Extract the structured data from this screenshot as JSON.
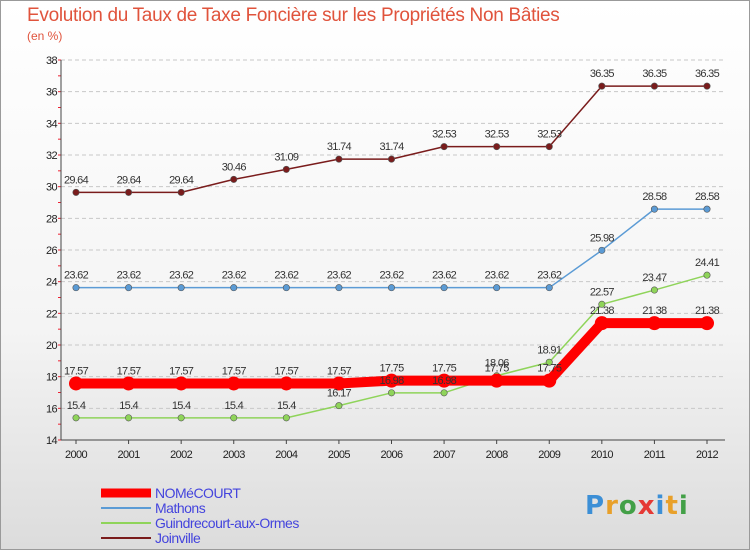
{
  "header": {
    "title": "Evolution du Taux de Taxe Foncière sur les Propriétés Non Bâties",
    "unit": "(en %)"
  },
  "logo": {
    "text": "Proxiti",
    "colors": [
      "#3c8fd6",
      "#e8a02a",
      "#43a047",
      "#e53935",
      "#3c8fd6",
      "#e8a02a",
      "#43a047"
    ]
  },
  "chart_data": {
    "type": "line",
    "title": "Evolution du Taux de Taxe Foncière sur les Propriétés Non Bâties",
    "ylabel": "(en %)",
    "xlabel": "",
    "ylim": [
      14,
      38
    ],
    "yticks": [
      14,
      16,
      18,
      20,
      22,
      24,
      26,
      28,
      30,
      32,
      34,
      36,
      38
    ],
    "grid": "horizontal-dashed",
    "legend": "bottom",
    "x": [
      "2000",
      "2001",
      "2002",
      "2003",
      "2004",
      "2005",
      "2006",
      "2007",
      "2008",
      "2009",
      "2010",
      "2011",
      "2012"
    ],
    "series": [
      {
        "name": "Joinville",
        "color": "#7a1c1c",
        "values": [
          29.64,
          29.64,
          29.64,
          30.46,
          31.09,
          31.74,
          31.74,
          32.53,
          32.53,
          32.53,
          36.35,
          36.35,
          36.35
        ],
        "labels": [
          "29.64",
          "29.64",
          "29.64",
          "30.46",
          "31.09",
          "31.74",
          "31.74",
          "32.53",
          "32.53",
          "32.53",
          "36.35",
          "36.35",
          "36.35"
        ]
      },
      {
        "name": "Mathons",
        "color": "#5b9bd5",
        "values": [
          23.62,
          23.62,
          23.62,
          23.62,
          23.62,
          23.62,
          23.62,
          23.62,
          23.62,
          23.62,
          25.98,
          28.58,
          28.58
        ],
        "labels": [
          "23.62",
          "23.62",
          "23.62",
          "23.62",
          "23.62",
          "23.62",
          "23.62",
          "23.62",
          "23.62",
          "23.62",
          "25.98",
          "28.58",
          "28.58"
        ]
      },
      {
        "name": "Guindrecourt-aux-Ormes",
        "color": "#8fd45a",
        "values": [
          15.4,
          15.4,
          15.4,
          15.4,
          15.4,
          16.17,
          16.98,
          16.98,
          18.06,
          18.91,
          22.57,
          23.47,
          24.41
        ],
        "labels": [
          "15.4",
          "15.4",
          "15.4",
          "15.4",
          "15.4",
          "16.17",
          "16.98",
          "16.98",
          "18.06",
          "18.91",
          "22.57",
          "23.47",
          "24.41"
        ]
      },
      {
        "name": "NOMéCOURT",
        "color": "#ff0000",
        "values": [
          17.57,
          17.57,
          17.57,
          17.57,
          17.57,
          17.57,
          17.75,
          17.75,
          17.75,
          17.75,
          21.38,
          21.38,
          21.38
        ],
        "labels": [
          "17.57",
          "17.57",
          "17.57",
          "17.57",
          "17.57",
          "17.57",
          "17.75",
          "17.75",
          "17.75",
          "17.75",
          "21.38",
          "21.38",
          "21.38"
        ]
      }
    ],
    "legend_order": [
      "NOMéCOURT",
      "Mathons",
      "Guindrecourt-aux-Ormes",
      "Joinville"
    ]
  }
}
